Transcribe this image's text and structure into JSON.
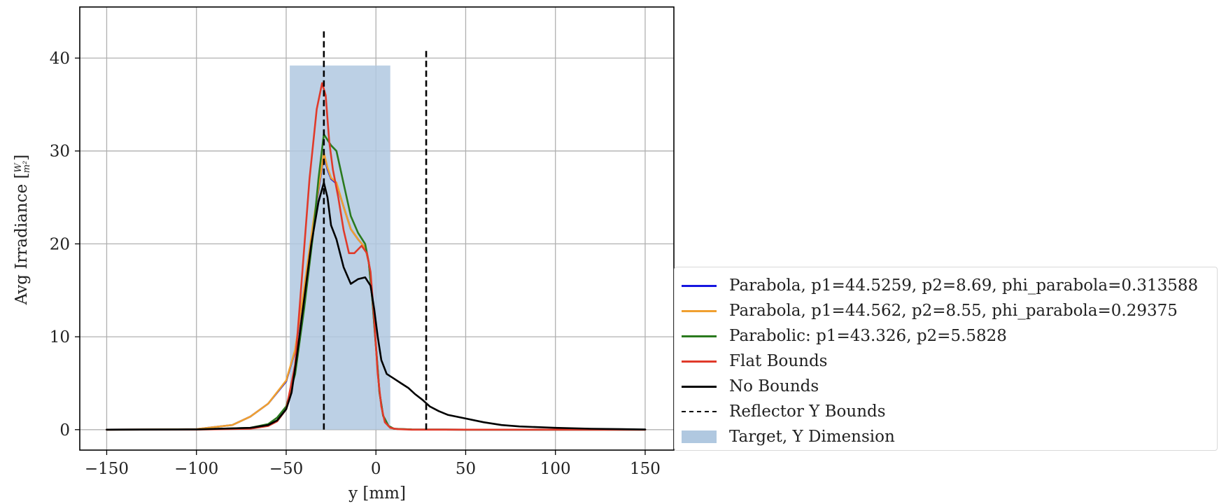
{
  "chart_data": {
    "type": "line",
    "title": "",
    "xlabel": "y [mm]",
    "ylabel_main": "Avg Irradiance [",
    "ylabel_num": "W",
    "ylabel_den": "m²",
    "ylabel_close": "]",
    "xlim": [
      -165,
      166
    ],
    "ylim": [
      -2.2,
      45.5
    ],
    "xticks": [
      -150,
      -100,
      -50,
      0,
      50,
      100,
      150
    ],
    "xtick_labels": [
      "−150",
      "−100",
      "−50",
      "0",
      "50",
      "100",
      "150"
    ],
    "yticks": [
      0,
      10,
      20,
      30,
      40
    ],
    "ytick_labels": [
      "0",
      "10",
      "20",
      "30",
      "40"
    ],
    "grid": true,
    "legend_position": "outside-right-lower",
    "target_region": {
      "name": "Target, Y Dimension",
      "x0": -48,
      "x1": 8,
      "y0": 0,
      "y1": 39.2,
      "color": "#b0c8e0"
    },
    "reflector_bounds": {
      "name": "Reflector Y Bounds",
      "lines": [
        {
          "x": -29,
          "ymax": 43.2
        },
        {
          "x": 28,
          "ymax": 40.8
        }
      ],
      "color": "#000000"
    },
    "series": [
      {
        "name": "Parabola, p1=44.5259, p2=8.69, phi_parabola=0.313588",
        "color": "#1515e0",
        "points": [
          [
            -150,
            0
          ],
          [
            -100,
            0.05
          ],
          [
            -80,
            0.5
          ],
          [
            -70,
            1.4
          ],
          [
            -60,
            2.8
          ],
          [
            -50,
            5.2
          ],
          [
            -45,
            8.5
          ],
          [
            -40,
            15
          ],
          [
            -35,
            22
          ],
          [
            -31,
            27
          ],
          [
            -29,
            29.6
          ],
          [
            -27,
            28
          ],
          [
            -25,
            27
          ],
          [
            -22,
            26.5
          ],
          [
            -18,
            24
          ],
          [
            -14,
            21.6
          ],
          [
            -10,
            20.5
          ],
          [
            -6,
            19.6
          ],
          [
            -4,
            18
          ],
          [
            -2,
            14
          ],
          [
            0,
            9
          ],
          [
            2,
            4
          ],
          [
            4,
            1.5
          ],
          [
            7,
            0.4
          ],
          [
            10,
            0.1
          ],
          [
            20,
            0.02
          ],
          [
            50,
            0
          ],
          [
            150,
            0
          ]
        ]
      },
      {
        "name": "Parabola, p1=44.562, p2=8.55, phi_parabola=0.29375",
        "color": "#f0a030",
        "points": [
          [
            -150,
            0
          ],
          [
            -100,
            0.05
          ],
          [
            -80,
            0.5
          ],
          [
            -70,
            1.4
          ],
          [
            -60,
            2.8
          ],
          [
            -50,
            5.3
          ],
          [
            -45,
            8.6
          ],
          [
            -40,
            15.2
          ],
          [
            -35,
            22.2
          ],
          [
            -31,
            27.2
          ],
          [
            -29,
            29.8
          ],
          [
            -27,
            28.2
          ],
          [
            -25,
            27.1
          ],
          [
            -22,
            26.6
          ],
          [
            -18,
            24
          ],
          [
            -14,
            21.6
          ],
          [
            -10,
            20.5
          ],
          [
            -6,
            19.6
          ],
          [
            -4,
            18
          ],
          [
            -2,
            14
          ],
          [
            0,
            9
          ],
          [
            2,
            4
          ],
          [
            4,
            1.5
          ],
          [
            7,
            0.4
          ],
          [
            10,
            0.1
          ],
          [
            20,
            0.02
          ],
          [
            50,
            0
          ],
          [
            150,
            0
          ]
        ]
      },
      {
        "name": "Parabolic: p1=43.326, p2=5.5828",
        "color": "#2a7a1e",
        "points": [
          [
            -150,
            0
          ],
          [
            -100,
            0.02
          ],
          [
            -70,
            0.2
          ],
          [
            -60,
            0.6
          ],
          [
            -55,
            1.3
          ],
          [
            -50,
            2.5
          ],
          [
            -45,
            6
          ],
          [
            -40,
            13
          ],
          [
            -35,
            21
          ],
          [
            -32,
            27
          ],
          [
            -29,
            31.8
          ],
          [
            -27,
            31.2
          ],
          [
            -25,
            30.6
          ],
          [
            -22,
            30
          ],
          [
            -18,
            26.5
          ],
          [
            -14,
            23
          ],
          [
            -10,
            21.2
          ],
          [
            -6,
            20
          ],
          [
            -4,
            18
          ],
          [
            -2,
            14
          ],
          [
            0,
            9
          ],
          [
            2,
            4
          ],
          [
            4,
            1.5
          ],
          [
            7,
            0.4
          ],
          [
            10,
            0.1
          ],
          [
            20,
            0.02
          ],
          [
            50,
            0
          ],
          [
            150,
            0
          ]
        ]
      },
      {
        "name": "Flat Bounds",
        "color": "#e03a2a",
        "points": [
          [
            -150,
            0
          ],
          [
            -100,
            0.01
          ],
          [
            -70,
            0.1
          ],
          [
            -60,
            0.4
          ],
          [
            -55,
            0.9
          ],
          [
            -50,
            2.2
          ],
          [
            -45,
            7
          ],
          [
            -41,
            17
          ],
          [
            -37,
            27
          ],
          [
            -33,
            34.5
          ],
          [
            -30,
            37.3
          ],
          [
            -28,
            36
          ],
          [
            -26,
            31
          ],
          [
            -24,
            28
          ],
          [
            -21,
            25
          ],
          [
            -18,
            21.5
          ],
          [
            -15,
            19
          ],
          [
            -12,
            19
          ],
          [
            -8,
            19.8
          ],
          [
            -5,
            19
          ],
          [
            -3,
            17
          ],
          [
            -1,
            12
          ],
          [
            1,
            6
          ],
          [
            3,
            2.5
          ],
          [
            5,
            0.8
          ],
          [
            8,
            0.2
          ],
          [
            12,
            0.05
          ],
          [
            20,
            0
          ],
          [
            150,
            0
          ]
        ]
      },
      {
        "name": "No Bounds",
        "color": "#000000",
        "points": [
          [
            -150,
            0
          ],
          [
            -100,
            0.02
          ],
          [
            -70,
            0.2
          ],
          [
            -60,
            0.5
          ],
          [
            -55,
            1
          ],
          [
            -50,
            2.2
          ],
          [
            -47,
            4
          ],
          [
            -44,
            8
          ],
          [
            -40,
            14
          ],
          [
            -36,
            20
          ],
          [
            -32,
            24.5
          ],
          [
            -29,
            26.6
          ],
          [
            -27,
            25
          ],
          [
            -25,
            22
          ],
          [
            -22,
            20.5
          ],
          [
            -18,
            17.5
          ],
          [
            -14,
            15.7
          ],
          [
            -10,
            16.2
          ],
          [
            -6,
            16.4
          ],
          [
            -3,
            15.5
          ],
          [
            -1,
            13
          ],
          [
            1,
            10
          ],
          [
            3,
            7.5
          ],
          [
            6,
            6
          ],
          [
            10,
            5.5
          ],
          [
            14,
            5
          ],
          [
            18,
            4.5
          ],
          [
            22,
            3.8
          ],
          [
            26,
            3.2
          ],
          [
            30,
            2.5
          ],
          [
            35,
            2
          ],
          [
            40,
            1.6
          ],
          [
            50,
            1.2
          ],
          [
            60,
            0.8
          ],
          [
            70,
            0.5
          ],
          [
            80,
            0.35
          ],
          [
            100,
            0.2
          ],
          [
            120,
            0.1
          ],
          [
            150,
            0.02
          ]
        ]
      }
    ]
  }
}
